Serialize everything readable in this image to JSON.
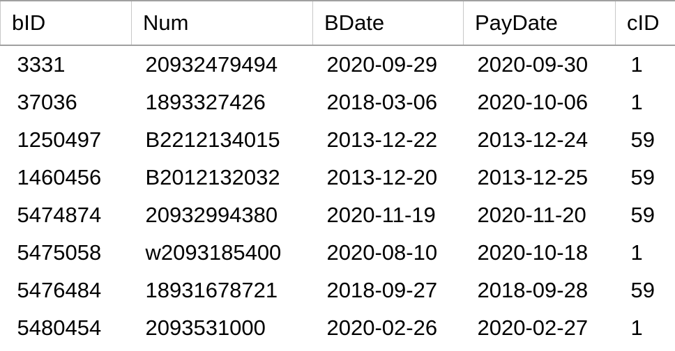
{
  "results_grid": {
    "columns": [
      "bID",
      "Num",
      "BDate",
      "PayDate",
      "cID"
    ],
    "rows": [
      [
        "3331",
        "20932479494",
        "2020-09-29",
        "2020-09-30",
        "1"
      ],
      [
        "37036",
        "1893327426",
        "2018-03-06",
        "2020-10-06",
        "1"
      ],
      [
        "1250497",
        "B2212134015",
        "2013-12-22",
        "2013-12-24",
        "59"
      ],
      [
        "1460456",
        "B2012132032",
        "2013-12-20",
        "2013-12-25",
        "59"
      ],
      [
        "5474874",
        "20932994380",
        "2020-11-19",
        "2020-11-20",
        "59"
      ],
      [
        "5475058",
        "w2093185400",
        "2020-08-10",
        "2020-10-18",
        "1"
      ],
      [
        "5476484",
        "18931678721",
        "2018-09-27",
        "2018-09-28",
        "59"
      ],
      [
        "5480454",
        "2093531000",
        "2020-02-26",
        "2020-02-27",
        "1"
      ]
    ]
  }
}
